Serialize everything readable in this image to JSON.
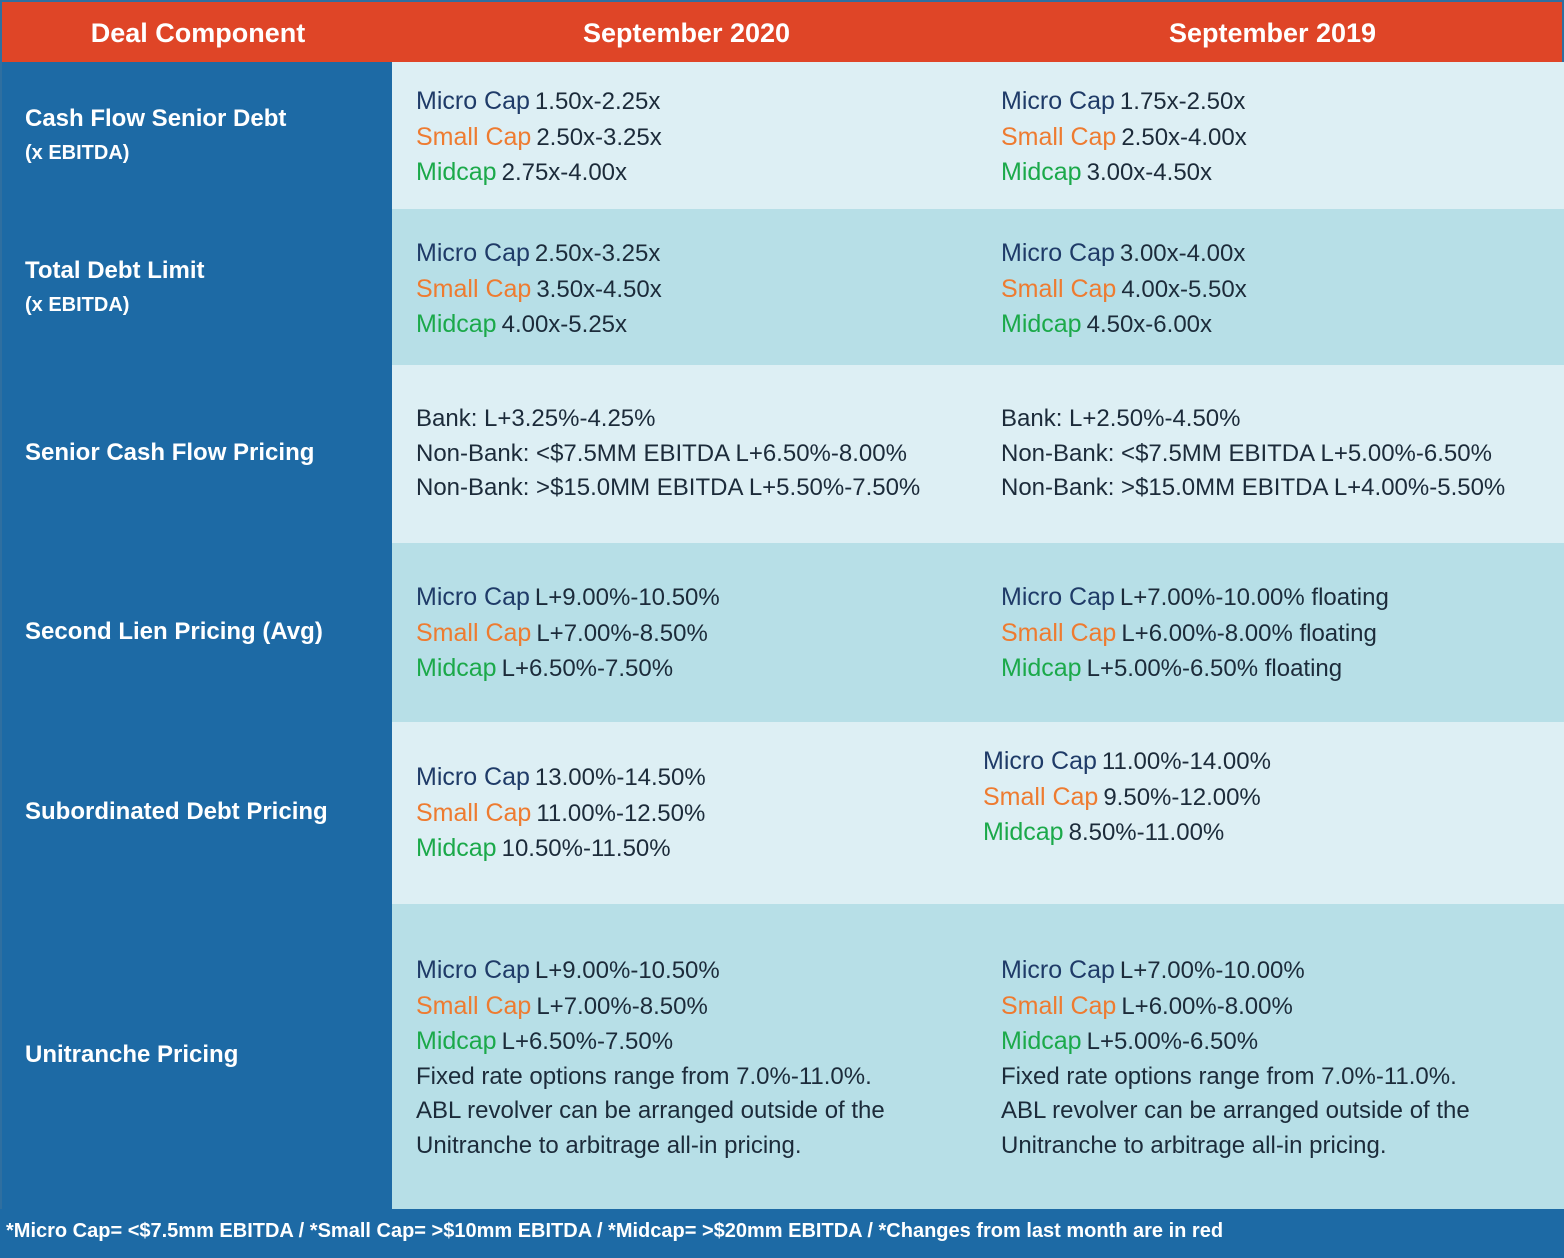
{
  "header": {
    "col1": "Deal Component",
    "col2": "September 2020",
    "col3": "September 2019"
  },
  "tags": {
    "micro": "Micro Cap",
    "small": "Small Cap",
    "mid": "Midcap"
  },
  "colors": {
    "header_bg": "#df4527",
    "label_bg": "#1d6aa5",
    "row_light": "#ddeff4",
    "row_dark": "#b7dfe7",
    "micro": "#1f3b68",
    "small": "#ee7b30",
    "mid": "#1ba94a"
  },
  "rows": [
    {
      "label": "Cash Flow Senior Debt",
      "sublabel": "(x EBITDA)",
      "sep2020": {
        "micro": "1.50x-2.25x",
        "small": "2.50x-3.25x",
        "mid": "2.75x-4.00x"
      },
      "sep2019": {
        "micro": "1.75x-2.50x",
        "small": "2.50x-4.00x",
        "mid": "3.00x-4.50x"
      }
    },
    {
      "label": "Total Debt Limit",
      "sublabel": "(x EBITDA)",
      "sep2020": {
        "micro": "2.50x-3.25x",
        "small": "3.50x-4.50x",
        "mid": "4.00x-5.25x"
      },
      "sep2019": {
        "micro": "3.00x-4.00x",
        "small": "4.00x-5.50x",
        "mid": "4.50x-6.00x"
      }
    },
    {
      "label": "Senior Cash Flow Pricing",
      "sep2020": {
        "line1": "Bank: L+3.25%-4.25%",
        "line2": "Non-Bank: <$7.5MM EBITDA L+6.50%-8.00%",
        "line3": "Non-Bank: >$15.0MM EBITDA L+5.50%-7.50%"
      },
      "sep2019": {
        "line1": "Bank: L+2.50%-4.50%",
        "line2": "Non-Bank: <$7.5MM EBITDA L+5.00%-6.50%",
        "line3": "Non-Bank: >$15.0MM EBITDA L+4.00%-5.50%"
      }
    },
    {
      "label": "Second Lien Pricing (Avg)",
      "sep2020": {
        "micro": "L+9.00%-10.50%",
        "small": "L+7.00%-8.50%",
        "mid": "L+6.50%-7.50%"
      },
      "sep2019": {
        "micro": "L+7.00%-10.00% floating",
        "small": "L+6.00%-8.00% floating",
        "mid": "L+5.00%-6.50% floating"
      }
    },
    {
      "label": "Subordinated Debt Pricing",
      "sep2020": {
        "micro": "13.00%-14.50%",
        "small": "11.00%-12.50%",
        "mid": "10.50%-11.50%"
      },
      "sep2019": {
        "micro": "11.00%-14.00%",
        "small": "9.50%-12.00%",
        "mid": "8.50%-11.00%"
      }
    },
    {
      "label": "Unitranche Pricing",
      "sep2020": {
        "micro": "L+9.00%-10.50%",
        "small": "L+7.00%-8.50%",
        "mid": "L+6.50%-7.50%",
        "note1": "Fixed rate options range from 7.0%-11.0%.",
        "note2": "ABL revolver can be arranged outside of the",
        "note3": "Unitranche to arbitrage all-in pricing."
      },
      "sep2019": {
        "micro": "L+7.00%-10.00%",
        "small": "L+6.00%-8.00%",
        "mid": "L+5.00%-6.50%",
        "note1": "Fixed rate options range from 7.0%-11.0%.",
        "note2": "ABL revolver can be arranged outside of the",
        "note3": "Unitranche to arbitrage all-in pricing."
      }
    }
  ],
  "footer": "*Micro Cap= <$7.5mm EBITDA / *Small Cap= >$10mm EBITDA / *Midcap= >$20mm EBITDA / *Changes from last month are in red"
}
